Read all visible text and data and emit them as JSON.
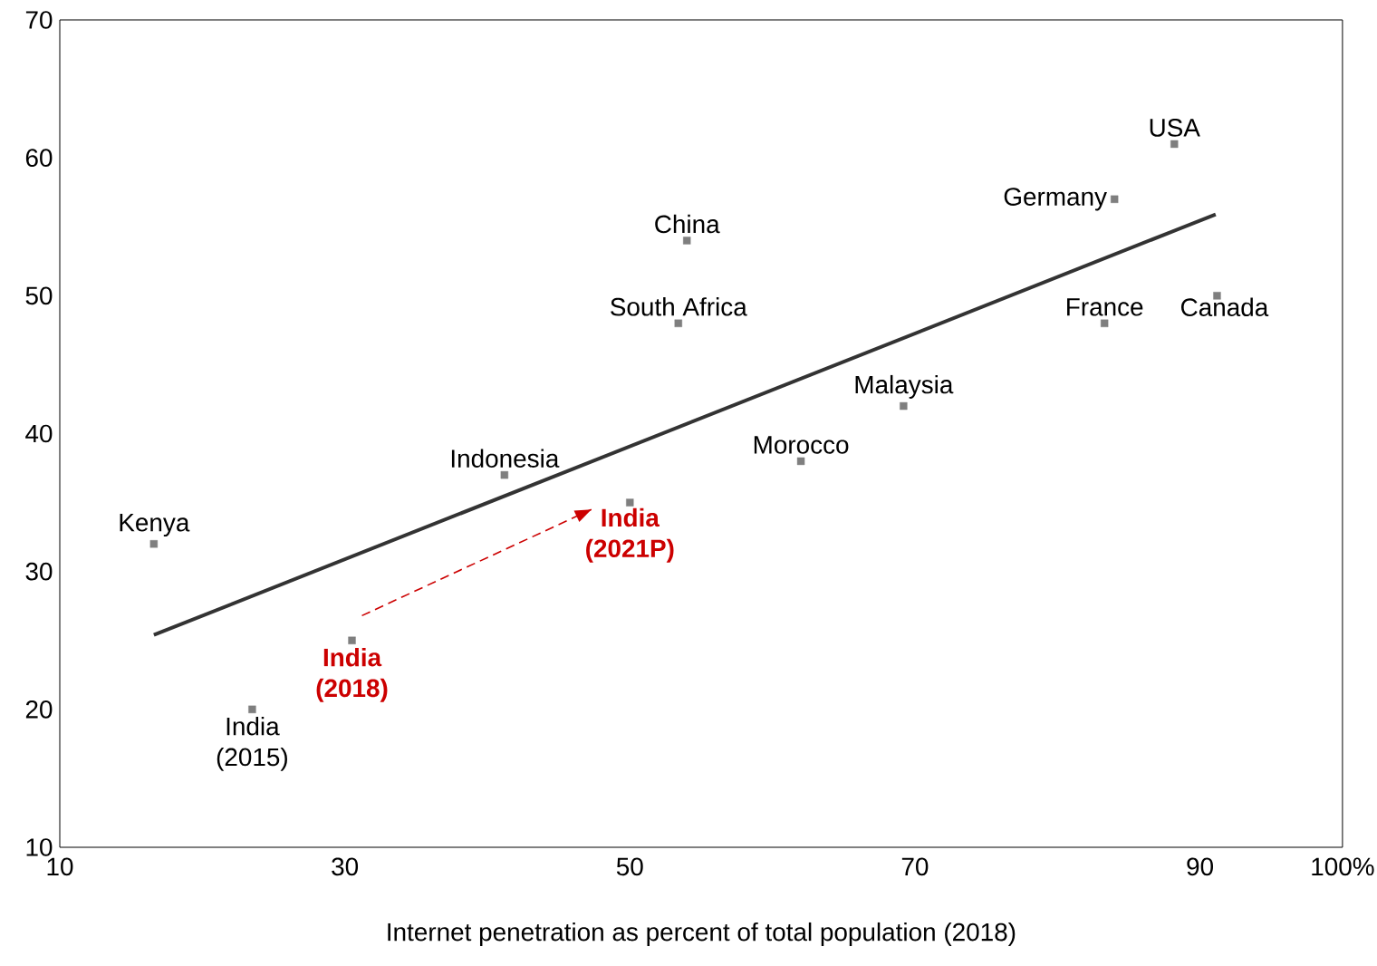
{
  "chart_data": {
    "type": "scatter",
    "xlabel": "Internet penetration as percent of total population (2018)",
    "xlim": [
      10,
      100
    ],
    "xticks": [
      10,
      30,
      50,
      70,
      90,
      {
        "value": 100,
        "label": "100%"
      }
    ],
    "ylim": [
      10,
      70
    ],
    "yticks": [
      10,
      20,
      30,
      40,
      50,
      60,
      70
    ],
    "grid": false,
    "series": [
      {
        "marker": "square",
        "color": "#7f7f7f",
        "x": [
          16.6,
          23.5,
          30.5,
          41.2,
          50.0,
          53.4,
          54.0,
          62.0,
          69.2,
          83.3,
          84.0,
          88.2,
          91.2
        ],
        "values": [
          32,
          20,
          25,
          37,
          35,
          48,
          54,
          38,
          42,
          48,
          57,
          61,
          50
        ]
      },
      {
        "type": "line",
        "marker": "none",
        "line_style": "solid",
        "color": "#333333",
        "x": [
          16.6,
          91.1
        ],
        "values": [
          25.4,
          55.9
        ]
      },
      {
        "type": "line",
        "marker": "none",
        "line_style": "dashed",
        "color": "#cc0000",
        "x": [
          31.2,
          47.3
        ],
        "values": [
          26.8,
          34.5
        ]
      }
    ],
    "annotations": [
      {
        "text": "Kenya",
        "x": 16.6,
        "y": 32
      },
      {
        "text": "India (2015)",
        "x": 23.5,
        "y": 20
      },
      {
        "text": "India (2018)",
        "x": 30.5,
        "y": 25
      },
      {
        "text": "Indonesia",
        "x": 41.2,
        "y": 37
      },
      {
        "text": "India (2021P)",
        "x": 50.0,
        "y": 35
      },
      {
        "text": "South Africa",
        "x": 53.4,
        "y": 48
      },
      {
        "text": "China",
        "x": 54.0,
        "y": 54
      },
      {
        "text": "Morocco",
        "x": 62.0,
        "y": 38
      },
      {
        "text": "Malaysia",
        "x": 69.2,
        "y": 42
      },
      {
        "text": "France",
        "x": 83.3,
        "y": 48
      },
      {
        "text": "Germany",
        "x": 84.0,
        "y": 57
      },
      {
        "text": "USA",
        "x": 88.2,
        "y": 61
      },
      {
        "text": "Canada",
        "x": 91.2,
        "y": 50
      }
    ]
  }
}
